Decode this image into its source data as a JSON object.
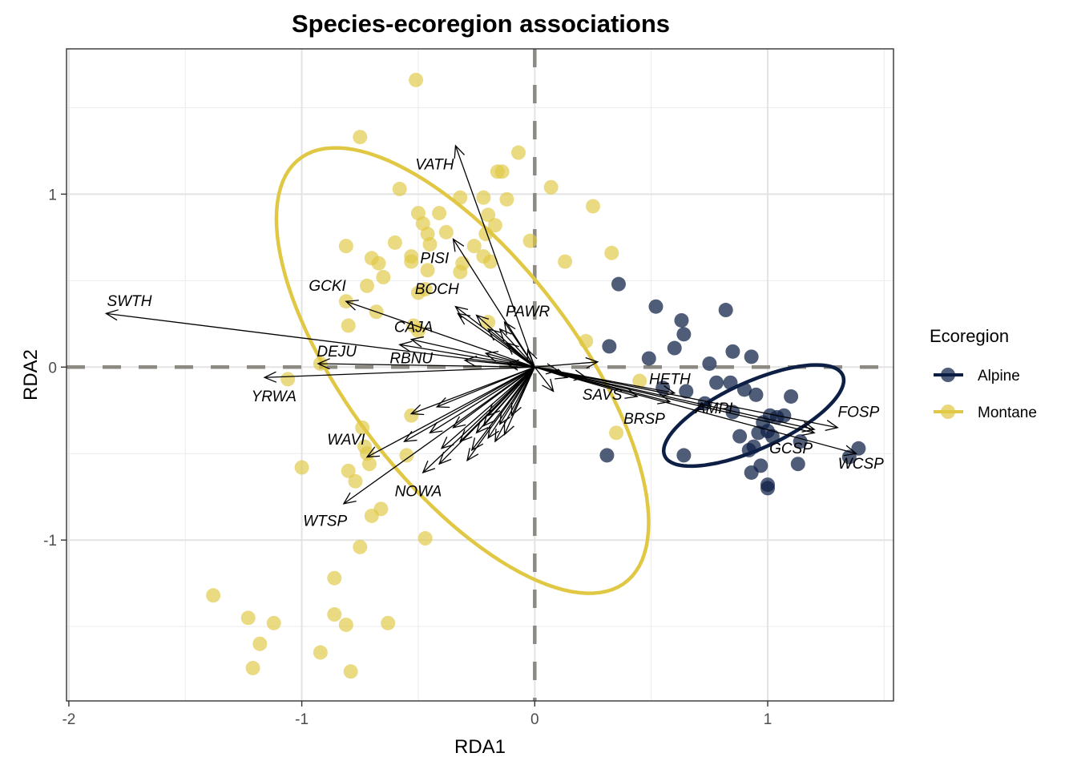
{
  "chart_data": {
    "type": "scatter",
    "title": "Species-ecoregion associations",
    "xlabel": "RDA1",
    "ylabel": "RDA2",
    "xlim": [
      -2.01,
      1.54
    ],
    "ylim": [
      -1.93,
      1.84
    ],
    "x_ticks": [
      -2,
      -1,
      0,
      1
    ],
    "y_ticks": [
      -1,
      0,
      1
    ],
    "x_tick_labels": [
      "-2",
      "-1",
      "0",
      "1"
    ],
    "y_tick_labels": [
      "-1",
      "0",
      "1"
    ],
    "grid": true,
    "reference_lines": {
      "x": 0,
      "y": 0,
      "style": "dashed",
      "color": "#8c8a82"
    },
    "legend": {
      "title": "Ecoregion",
      "position": "right",
      "entries": [
        {
          "name": "Alpine",
          "color": "#0d1f45"
        },
        {
          "name": "Montane",
          "color": "#e0c845"
        }
      ]
    },
    "series": [
      {
        "name": "Montane",
        "color": "#e0c845",
        "points": [
          [
            -0.51,
            1.66
          ],
          [
            -0.75,
            1.33
          ],
          [
            -0.07,
            1.24
          ],
          [
            -0.16,
            1.13
          ],
          [
            -0.14,
            1.13
          ],
          [
            0.07,
            1.04
          ],
          [
            -0.58,
            1.03
          ],
          [
            -0.32,
            0.98
          ],
          [
            -0.22,
            0.98
          ],
          [
            -0.12,
            0.97
          ],
          [
            0.25,
            0.93
          ],
          [
            -0.5,
            0.89
          ],
          [
            -0.41,
            0.89
          ],
          [
            -0.2,
            0.88
          ],
          [
            -0.48,
            0.83
          ],
          [
            -0.38,
            0.78
          ],
          [
            -0.46,
            0.77
          ],
          [
            -0.21,
            0.77
          ],
          [
            -0.17,
            0.82
          ],
          [
            -0.6,
            0.72
          ],
          [
            -0.45,
            0.71
          ],
          [
            -0.81,
            0.7
          ],
          [
            -0.26,
            0.7
          ],
          [
            -0.22,
            0.64
          ],
          [
            -0.02,
            0.73
          ],
          [
            0.33,
            0.66
          ],
          [
            -0.7,
            0.63
          ],
          [
            -0.53,
            0.64
          ],
          [
            -0.67,
            0.6
          ],
          [
            -0.53,
            0.61
          ],
          [
            -0.31,
            0.6
          ],
          [
            -0.19,
            0.61
          ],
          [
            -0.32,
            0.55
          ],
          [
            0.13,
            0.61
          ],
          [
            -0.65,
            0.52
          ],
          [
            -0.46,
            0.56
          ],
          [
            -0.72,
            0.47
          ],
          [
            -0.5,
            0.43
          ],
          [
            -0.47,
            0.45
          ],
          [
            -0.81,
            0.38
          ],
          [
            -0.68,
            0.32
          ],
          [
            -0.52,
            0.24
          ],
          [
            -0.8,
            0.24
          ],
          [
            -0.2,
            0.26
          ],
          [
            -0.5,
            0.21
          ],
          [
            0.22,
            0.15
          ],
          [
            -0.92,
            0.02
          ],
          [
            -1.06,
            -0.07
          ],
          [
            0.45,
            -0.08
          ],
          [
            -0.53,
            -0.28
          ],
          [
            0.35,
            -0.38
          ],
          [
            -0.74,
            -0.35
          ],
          [
            -0.73,
            -0.46
          ],
          [
            -0.72,
            -0.5
          ],
          [
            -0.71,
            -0.56
          ],
          [
            -0.55,
            -0.51
          ],
          [
            -1.0,
            -0.58
          ],
          [
            -0.8,
            -0.6
          ],
          [
            -0.77,
            -0.66
          ],
          [
            -0.66,
            -0.82
          ],
          [
            -0.7,
            -0.86
          ],
          [
            -0.47,
            -0.99
          ],
          [
            -0.75,
            -1.04
          ],
          [
            -0.86,
            -1.22
          ],
          [
            -1.38,
            -1.32
          ],
          [
            -1.23,
            -1.45
          ],
          [
            -1.12,
            -1.48
          ],
          [
            -0.86,
            -1.43
          ],
          [
            -0.81,
            -1.49
          ],
          [
            -0.63,
            -1.48
          ],
          [
            -1.18,
            -1.6
          ],
          [
            -0.92,
            -1.65
          ],
          [
            -1.21,
            -1.74
          ],
          [
            -0.79,
            -1.76
          ]
        ]
      },
      {
        "name": "Alpine",
        "color": "#0d1f45",
        "points": [
          [
            0.36,
            0.48
          ],
          [
            0.52,
            0.35
          ],
          [
            0.63,
            0.27
          ],
          [
            0.82,
            0.33
          ],
          [
            0.64,
            0.19
          ],
          [
            0.32,
            0.12
          ],
          [
            0.6,
            0.11
          ],
          [
            0.49,
            0.05
          ],
          [
            0.85,
            0.09
          ],
          [
            0.93,
            0.06
          ],
          [
            0.75,
            0.02
          ],
          [
            0.78,
            -0.09
          ],
          [
            0.84,
            -0.09
          ],
          [
            0.55,
            -0.12
          ],
          [
            0.65,
            -0.14
          ],
          [
            0.9,
            -0.13
          ],
          [
            0.95,
            -0.16
          ],
          [
            1.1,
            -0.17
          ],
          [
            0.73,
            -0.21
          ],
          [
            0.85,
            -0.26
          ],
          [
            1.01,
            -0.28
          ],
          [
            1.04,
            -0.29
          ],
          [
            1.07,
            -0.28
          ],
          [
            0.98,
            -0.32
          ],
          [
            1.0,
            -0.37
          ],
          [
            0.96,
            -0.38
          ],
          [
            0.88,
            -0.4
          ],
          [
            1.02,
            -0.4
          ],
          [
            1.14,
            -0.43
          ],
          [
            0.94,
            -0.46
          ],
          [
            0.92,
            -0.48
          ],
          [
            1.39,
            -0.47
          ],
          [
            1.35,
            -0.52
          ],
          [
            0.31,
            -0.51
          ],
          [
            0.64,
            -0.51
          ],
          [
            1.13,
            -0.56
          ],
          [
            0.97,
            -0.57
          ],
          [
            0.93,
            -0.61
          ],
          [
            1.0,
            -0.68
          ],
          [
            1.0,
            -0.7
          ]
        ]
      }
    ],
    "ellipses": [
      {
        "group": "Montane",
        "color": "#e0c845",
        "center": [
          -0.31,
          -0.02
        ],
        "rx": 0.53,
        "ry": 1.42,
        "rotation_deg": 27
      },
      {
        "group": "Alpine",
        "color": "#0d1f45",
        "center": [
          0.94,
          -0.28
        ],
        "rx": 0.45,
        "ry": 0.18,
        "rotation_deg": 34
      }
    ],
    "species_vectors": [
      {
        "label": "VATH",
        "end": [
          -0.34,
          1.28
        ],
        "label_pos": [
          -0.43,
          1.17
        ]
      },
      {
        "label": "PISI",
        "end": [
          -0.35,
          0.74
        ],
        "label_pos": [
          -0.43,
          0.63
        ]
      },
      {
        "label": "BOCH",
        "end": [
          -0.34,
          0.35
        ],
        "label_pos": [
          -0.42,
          0.45
        ]
      },
      {
        "label": "GCKI",
        "end": [
          -0.81,
          0.38
        ],
        "label_pos": [
          -0.89,
          0.47
        ]
      },
      {
        "label": "SWTH",
        "end": [
          -1.84,
          0.31
        ],
        "label_pos": [
          -1.74,
          0.38
        ]
      },
      {
        "label": "CAJA",
        "end": [
          -0.53,
          0.16
        ],
        "label_pos": [
          -0.52,
          0.23
        ]
      },
      {
        "label": "RBNU",
        "end": [
          -0.58,
          0.13
        ],
        "label_pos": [
          -0.53,
          0.05
        ]
      },
      {
        "label": "PAWR",
        "end": [
          -0.13,
          0.26
        ],
        "label_pos": [
          -0.03,
          0.32
        ]
      },
      {
        "label": "DEJU",
        "end": [
          -0.93,
          0.02
        ],
        "label_pos": [
          -0.85,
          0.09
        ]
      },
      {
        "label": "YRWA",
        "end": [
          -1.16,
          -0.06
        ],
        "label_pos": [
          -1.12,
          -0.17
        ]
      },
      {
        "label": "WAVI",
        "end": [
          -0.72,
          -0.52
        ],
        "label_pos": [
          -0.81,
          -0.42
        ]
      },
      {
        "label": "WTSP",
        "end": [
          -0.82,
          -0.79
        ],
        "label_pos": [
          -0.9,
          -0.89
        ]
      },
      {
        "label": "NOWA",
        "end": [
          -0.48,
          -0.61
        ],
        "label_pos": [
          -0.5,
          -0.72
        ]
      },
      {
        "label": "SAVS",
        "end": [
          0.44,
          -0.17
        ],
        "label_pos": [
          0.29,
          -0.16
        ]
      },
      {
        "label": "BRSP",
        "end": [
          0.58,
          -0.2
        ],
        "label_pos": [
          0.47,
          -0.3
        ]
      },
      {
        "label": "HETH",
        "end": [
          0.6,
          -0.15
        ],
        "label_pos": [
          0.58,
          -0.07
        ]
      },
      {
        "label": "AMPI",
        "end": [
          1.2,
          -0.36
        ],
        "label_pos": [
          0.77,
          -0.24
        ]
      },
      {
        "label": "FOSP",
        "end": [
          1.3,
          -0.35
        ],
        "label_pos": [
          1.39,
          -0.26
        ]
      },
      {
        "label": "GCSP",
        "end": [
          1.2,
          -0.38
        ],
        "label_pos": [
          1.1,
          -0.47
        ]
      },
      {
        "label": "WCSP",
        "end": [
          1.38,
          -0.5
        ],
        "label_pos": [
          1.4,
          -0.56
        ]
      }
    ],
    "unlabeled_vectors": [
      [
        -0.33,
        0.31
      ],
      [
        -0.25,
        0.3
      ],
      [
        -0.2,
        0.22
      ],
      [
        -0.15,
        0.22
      ],
      [
        -0.12,
        0.14
      ],
      [
        -0.03,
        0.1
      ],
      [
        -0.21,
        0.08
      ],
      [
        -0.3,
        0.04
      ],
      [
        -0.12,
        0.02
      ],
      [
        0.27,
        0.03
      ],
      [
        0.1,
        -0.02
      ],
      [
        0.14,
        -0.06
      ],
      [
        0.22,
        -0.06
      ],
      [
        0.08,
        -0.14
      ],
      [
        -0.53,
        -0.27
      ],
      [
        -0.42,
        -0.23
      ],
      [
        -0.56,
        -0.43
      ],
      [
        -0.45,
        -0.38
      ],
      [
        -0.4,
        -0.47
      ],
      [
        -0.35,
        -0.35
      ],
      [
        -0.32,
        -0.43
      ],
      [
        -0.27,
        -0.48
      ],
      [
        -0.25,
        -0.38
      ],
      [
        -0.22,
        -0.34
      ],
      [
        -0.2,
        -0.41
      ],
      [
        -0.17,
        -0.43
      ],
      [
        -0.2,
        -0.28
      ],
      [
        -0.15,
        -0.33
      ],
      [
        -0.13,
        -0.39
      ],
      [
        -0.1,
        -0.28
      ],
      [
        -0.41,
        -0.56
      ],
      [
        -0.29,
        -0.54
      ]
    ]
  }
}
